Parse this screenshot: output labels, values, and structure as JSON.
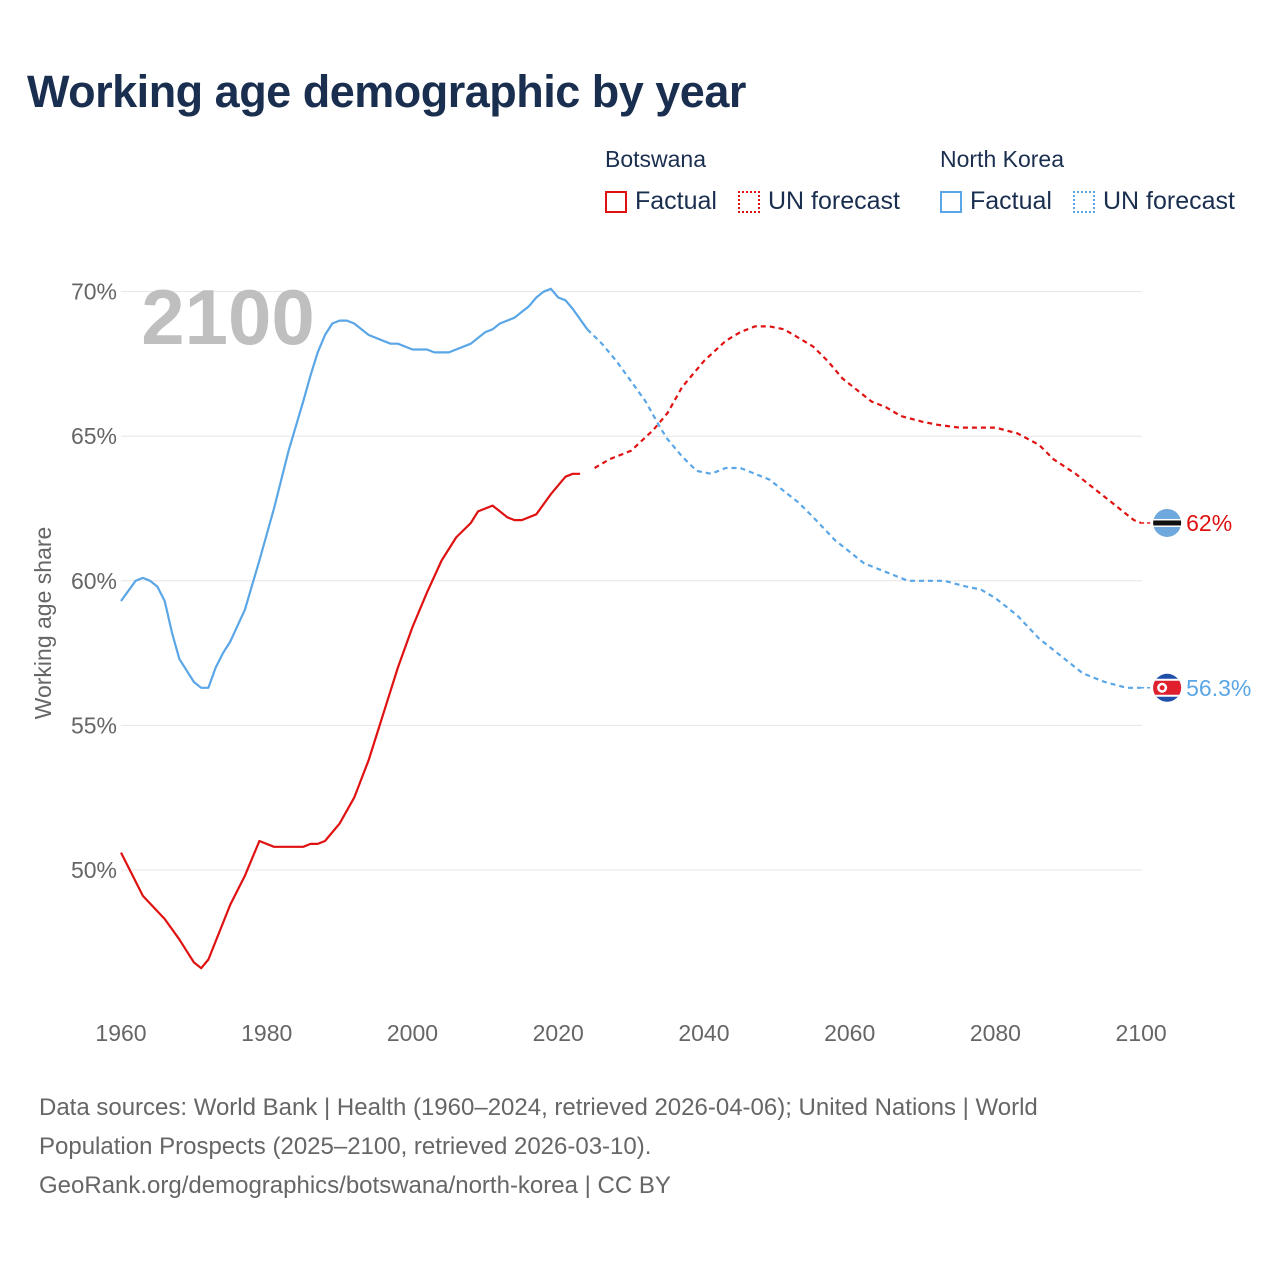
{
  "title": "Working age demographic by year",
  "legend": {
    "groups": [
      {
        "name": "Botswana",
        "items": [
          "Factual",
          "UN forecast"
        ],
        "color": "#e01111"
      },
      {
        "name": "North Korea",
        "items": [
          "Factual",
          "UN forecast"
        ],
        "color": "#5aa6e6"
      }
    ]
  },
  "chart_data": {
    "type": "line",
    "title": "Working age demographic by year",
    "xlabel": "",
    "ylabel": "Working age share",
    "year_watermark": "2100",
    "xlim": [
      1960,
      2103
    ],
    "ylim": [
      45.5,
      70.3
    ],
    "xticks": [
      1960,
      1980,
      2000,
      2020,
      2040,
      2060,
      2080,
      2100
    ],
    "yticks": [
      50,
      55,
      60,
      65,
      70
    ],
    "ytick_labels": [
      "50%",
      "55%",
      "60%",
      "65%",
      "70%"
    ],
    "factual_end_year": 2024,
    "grid": "horizontal",
    "series": [
      {
        "name": "Botswana",
        "color": "#e01111",
        "end_label": "62%",
        "flag": "botswana-flag-icon",
        "x": [
          1960,
          1963,
          1966,
          1968,
          1969,
          1970,
          1971,
          1972,
          1975,
          1977,
          1979,
          1981,
          1985,
          1986,
          1987,
          1988,
          1990,
          1992,
          1994,
          1996,
          1998,
          2000,
          2002,
          2004,
          2006,
          2008,
          2009,
          2011,
          2012,
          2013,
          2014,
          2015,
          2017,
          2019,
          2021,
          2022,
          2023,
          2025,
          2027,
          2030,
          2033,
          2035,
          2037,
          2040,
          2043,
          2045,
          2047,
          2049,
          2051,
          2053,
          2055,
          2057,
          2059,
          2061,
          2063,
          2065,
          2067,
          2070,
          2072,
          2075,
          2080,
          2083,
          2086,
          2088,
          2091,
          2093,
          2095,
          2097,
          2099,
          2100
        ],
        "y": [
          50.6,
          49.1,
          48.3,
          47.6,
          47.2,
          46.8,
          46.6,
          46.9,
          48.8,
          49.8,
          51.0,
          50.8,
          50.8,
          50.9,
          50.9,
          51.0,
          51.6,
          52.5,
          53.8,
          55.4,
          57.0,
          58.4,
          59.6,
          60.7,
          61.5,
          62.0,
          62.4,
          62.6,
          62.4,
          62.2,
          62.1,
          62.1,
          62.3,
          63.0,
          63.6,
          63.7,
          63.7,
          63.9,
          64.2,
          64.5,
          65.2,
          65.8,
          66.7,
          67.6,
          68.3,
          68.6,
          68.8,
          68.8,
          68.7,
          68.4,
          68.1,
          67.6,
          67.0,
          66.6,
          66.2,
          66.0,
          65.7,
          65.5,
          65.4,
          65.3,
          65.3,
          65.1,
          64.7,
          64.2,
          63.7,
          63.3,
          62.9,
          62.5,
          62.1,
          62.0
        ]
      },
      {
        "name": "North Korea",
        "color": "#5aa6e6",
        "end_label": "56.3%",
        "flag": "north-korea-flag-icon",
        "x": [
          1960,
          1962,
          1963,
          1964,
          1965,
          1966,
          1967,
          1968,
          1969,
          1970,
          1971,
          1972,
          1973,
          1974,
          1975,
          1977,
          1979,
          1981,
          1983,
          1985,
          1986,
          1987,
          1988,
          1989,
          1990,
          1991,
          1992,
          1994,
          1997,
          1998,
          2000,
          2002,
          2003,
          2005,
          2008,
          2010,
          2011,
          2012,
          2014,
          2015,
          2016,
          2017,
          2018,
          2019,
          2020,
          2021,
          2022,
          2024,
          2026,
          2028,
          2030,
          2032,
          2034,
          2035,
          2037,
          2039,
          2041,
          2043,
          2045,
          2047,
          2049,
          2051,
          2053,
          2055,
          2058,
          2062,
          2066,
          2068,
          2070,
          2073,
          2076,
          2078,
          2080,
          2083,
          2086,
          2089,
          2092,
          2095,
          2098,
          2100
        ],
        "y": [
          59.3,
          60.0,
          60.1,
          60.0,
          59.8,
          59.3,
          58.2,
          57.3,
          56.9,
          56.5,
          56.3,
          56.3,
          57.0,
          57.5,
          57.9,
          59.0,
          60.7,
          62.5,
          64.5,
          66.2,
          67.1,
          67.9,
          68.5,
          68.9,
          69.0,
          69.0,
          68.9,
          68.5,
          68.2,
          68.2,
          68.0,
          68.0,
          67.9,
          67.9,
          68.2,
          68.6,
          68.7,
          68.9,
          69.1,
          69.3,
          69.5,
          69.8,
          70.0,
          70.1,
          69.8,
          69.7,
          69.4,
          68.7,
          68.2,
          67.6,
          66.9,
          66.2,
          65.3,
          64.9,
          64.3,
          63.8,
          63.7,
          63.9,
          63.9,
          63.7,
          63.5,
          63.1,
          62.7,
          62.2,
          61.4,
          60.6,
          60.2,
          60.0,
          60.0,
          60.0,
          59.8,
          59.7,
          59.4,
          58.8,
          58.0,
          57.4,
          56.8,
          56.5,
          56.3,
          56.3
        ]
      }
    ]
  },
  "footer": {
    "line1": "Data sources: World Bank | Health (1960–2024, retrieved 2026-04-06); United Nations | World",
    "line2": "Population Prospects (2025–2100, retrieved 2026-03-10).",
    "line3": "GeoRank.org/demographics/botswana/north-korea | CC BY"
  }
}
